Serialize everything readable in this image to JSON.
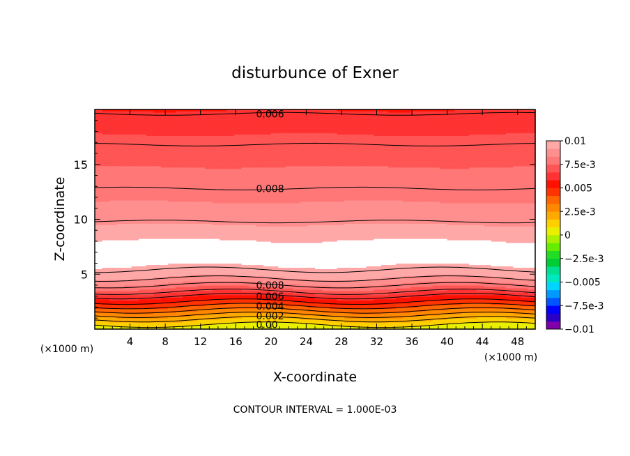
{
  "chart_data": {
    "type": "contour",
    "title": "disturbunce of Exner",
    "xlabel": "X-coordinate",
    "ylabel": "Z-coordinate",
    "x_unit": "(×1000 m)",
    "x_unit_right": "(×1000 m)",
    "xlim": [
      0,
      50
    ],
    "ylim": [
      0,
      20
    ],
    "x_ticks": [
      4,
      8,
      12,
      16,
      20,
      24,
      28,
      32,
      36,
      40,
      44,
      48
    ],
    "x_tick_labels": [
      "4",
      "8",
      "12",
      "16",
      "20",
      "24",
      "28",
      "32",
      "36",
      "40",
      "44",
      "48"
    ],
    "y_ticks": [
      5,
      10,
      15
    ],
    "y_tick_labels": [
      "5",
      "10",
      "15"
    ],
    "contour_interval_text": "CONTOUR INTERVAL = 1.000E-03",
    "colorbar": {
      "min": -0.01,
      "max": 0.01,
      "tick_values": [
        0.01,
        0.0075,
        0.005,
        0.0025,
        0,
        -0.0025,
        -0.005,
        -0.0075,
        -0.01
      ],
      "tick_labels": [
        "0.01",
        "7.5e-3",
        "0.005",
        "2.5e-3",
        "0",
        "−2.5e-3",
        "−0.005",
        "−7.5e-3",
        "−0.01"
      ],
      "colors": [
        "#7f00aa",
        "#2a00c8",
        "#0000ff",
        "#0055ff",
        "#0099ff",
        "#00d5ff",
        "#00e8c0",
        "#00e090",
        "#00cc33",
        "#22dd22",
        "#66ee00",
        "#aaf000",
        "#e8f000",
        "#ffd000",
        "#ffaa00",
        "#ff8800",
        "#ff6600",
        "#ff3300",
        "#ff1100",
        "#ff3333",
        "#ff5555",
        "#ff7777",
        "#ff8f8f",
        "#ffa8a8"
      ]
    },
    "contour_labels": [
      {
        "text": "0.006",
        "x": 18,
        "z": 19.6
      },
      {
        "text": "0.008",
        "x": 18,
        "z": 12.8
      },
      {
        "text": "0.008",
        "x": 18,
        "z": 4.0
      },
      {
        "text": "0.006",
        "x": 18,
        "z": 3.0
      },
      {
        "text": "0.004",
        "x": 18,
        "z": 2.1
      },
      {
        "text": "0.002",
        "x": 18,
        "z": 1.2
      },
      {
        "text": "0.00",
        "x": 18,
        "z": 0.4
      }
    ],
    "field_note_level_z": [
      {
        "z": 0.0,
        "value": 0.0
      },
      {
        "z": 0.5,
        "value": 0.001
      },
      {
        "z": 1.0,
        "value": 0.002
      },
      {
        "z": 1.5,
        "value": 0.003
      },
      {
        "z": 2.0,
        "value": 0.004
      },
      {
        "z": 2.5,
        "value": 0.005
      },
      {
        "z": 3.0,
        "value": 0.006
      },
      {
        "z": 3.5,
        "value": 0.007
      },
      {
        "z": 4.0,
        "value": 0.008
      },
      {
        "z": 4.5,
        "value": 0.009
      },
      {
        "z": 5.2,
        "value": 0.0095
      },
      {
        "z": 5.8,
        "value": 0.01
      },
      {
        "z": 7.2,
        "value": 0.0105
      },
      {
        "z": 8.5,
        "value": 0.0098
      },
      {
        "z": 9.8,
        "value": 0.009
      },
      {
        "z": 11.0,
        "value": 0.0085
      },
      {
        "z": 12.8,
        "value": 0.008
      },
      {
        "z": 14.0,
        "value": 0.0077
      },
      {
        "z": 16.8,
        "value": 0.007
      },
      {
        "z": 18.2,
        "value": 0.0065
      },
      {
        "z": 19.6,
        "value": 0.006
      },
      {
        "z": 20.0,
        "value": 0.0058
      }
    ]
  }
}
